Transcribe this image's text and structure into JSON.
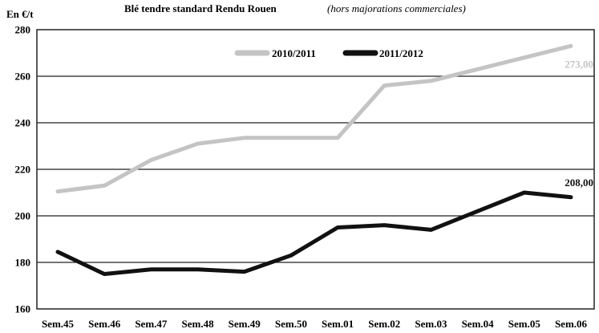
{
  "chart_data": {
    "type": "line",
    "title": "Blé tendre standard Rendu Rouen",
    "subtitle": "(hors majorations commerciales)",
    "ylabel": "En €/t",
    "xlabel": "",
    "ylim": [
      160,
      280
    ],
    "yticks": [
      160,
      180,
      200,
      220,
      240,
      260,
      280
    ],
    "grid": true,
    "legend_position": "top-right",
    "categories": [
      "Sem.45",
      "Sem.46",
      "Sem.47",
      "Sem.48",
      "Sem.49",
      "Sem.50",
      "Sem.01",
      "Sem.02",
      "Sem.03",
      "Sem.04",
      "Sem.05",
      "Sem.06"
    ],
    "series": [
      {
        "name": "2010/2011",
        "color": "#c4c4c4",
        "values": [
          210.5,
          213,
          224,
          231,
          233.5,
          233.5,
          233.5,
          256,
          258,
          263,
          268,
          273
        ],
        "end_label": "273,00"
      },
      {
        "name": "2011/2012",
        "color": "#111111",
        "values": [
          184.5,
          175,
          177,
          177,
          176,
          183,
          195,
          196,
          194,
          202,
          210,
          208
        ],
        "end_label": "208,00"
      }
    ]
  }
}
